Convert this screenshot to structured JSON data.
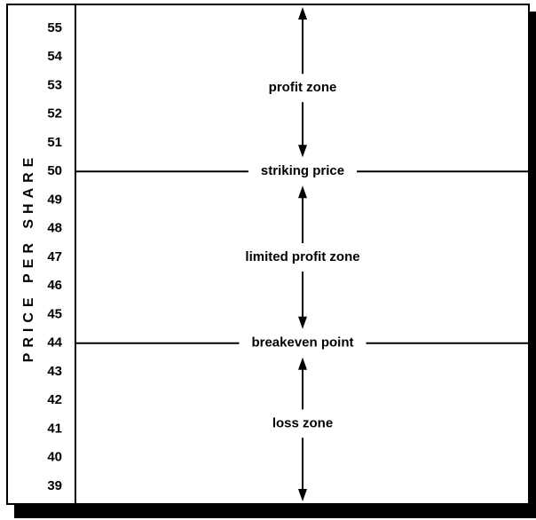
{
  "axis_label": "PRICE PER SHARE",
  "ticks": [
    55,
    54,
    53,
    52,
    51,
    50,
    49,
    48,
    47,
    46,
    45,
    44,
    43,
    42,
    41,
    40,
    39
  ],
  "levels": [
    {
      "label": "striking price",
      "price": 50
    },
    {
      "label": "breakeven point",
      "price": 44
    }
  ],
  "zones": [
    "profit zone",
    "limited profit zone",
    "loss zone"
  ]
}
